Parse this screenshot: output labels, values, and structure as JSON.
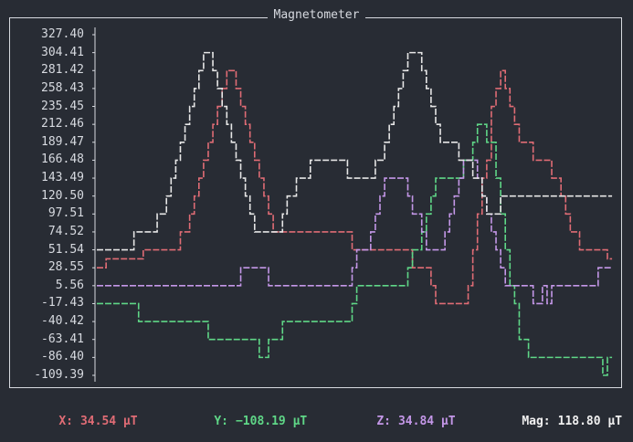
{
  "title": "Magnetometer",
  "colors": {
    "background": "#282c34",
    "frame": "#d7dae0",
    "x": "#e06c75",
    "y": "#5fd787",
    "z": "#c497e8",
    "mag": "#e6e6e6"
  },
  "chart_data": {
    "type": "line",
    "title": "Magnetometer",
    "xlabel": "",
    "ylabel": "",
    "yticks": [
      "327.40",
      "304.41",
      "281.42",
      "258.43",
      "235.45",
      "212.46",
      "189.47",
      "166.48",
      "143.49",
      "120.50",
      "97.51",
      "74.52",
      "51.54",
      "28.55",
      "5.56",
      "-17.43",
      "-40.42",
      "-63.41",
      "-86.40",
      "-109.39"
    ],
    "ylim": [
      -109.39,
      327.4
    ],
    "xlim": [
      0,
      110
    ],
    "grid": false,
    "legend": "none",
    "series": [
      {
        "name": "X",
        "color": "#e06c75",
        "values": [
          28.55,
          28.55,
          40,
          40,
          40,
          40,
          40,
          40,
          40,
          40,
          51.54,
          51.54,
          51.54,
          51.54,
          51.54,
          51.54,
          51.54,
          51.54,
          74.52,
          74.52,
          97.51,
          120.5,
          143.49,
          166.48,
          189.47,
          212.46,
          235.45,
          258.43,
          281.42,
          281.42,
          258.43,
          235.45,
          212.46,
          189.47,
          166.48,
          143.49,
          120.5,
          97.51,
          74.52,
          74.52,
          74.52,
          74.52,
          74.52,
          74.52,
          74.52,
          74.52,
          74.52,
          74.52,
          74.52,
          74.52,
          74.52,
          74.52,
          74.52,
          74.52,
          74.52,
          51.54,
          51.54,
          51.54,
          51.54,
          51.54,
          51.54,
          51.54,
          51.54,
          51.54,
          51.54,
          51.54,
          51.54,
          51.54,
          28.55,
          28.55,
          28.55,
          28.55,
          5.56,
          -17.43,
          -17.43,
          -17.43,
          -17.43,
          -17.43,
          -17.43,
          -17.43,
          5.56,
          51.54,
          97.51,
          143.49,
          166.48,
          235.45,
          258.43,
          281.42,
          258.43,
          235.45,
          212.46,
          189.47,
          189.47,
          189.47,
          166.48,
          166.48,
          166.48,
          166.48,
          143.49,
          143.49,
          120.5,
          97.51,
          74.52,
          74.52,
          51.54,
          51.54,
          51.54,
          51.54,
          51.54,
          51.54,
          40
        ]
      },
      {
        "name": "Y",
        "color": "#5fd787",
        "values": [
          -17.43,
          -17.43,
          -17.43,
          -17.43,
          -17.43,
          -17.43,
          -17.43,
          -17.43,
          -17.43,
          -40.42,
          -40.42,
          -40.42,
          -40.42,
          -40.42,
          -40.42,
          -40.42,
          -40.42,
          -40.42,
          -40.42,
          -40.42,
          -40.42,
          -40.42,
          -40.42,
          -40.42,
          -63.41,
          -63.41,
          -63.41,
          -63.41,
          -63.41,
          -63.41,
          -63.41,
          -63.41,
          -63.41,
          -63.41,
          -63.41,
          -86.4,
          -86.4,
          -63.41,
          -63.41,
          -63.41,
          -40.42,
          -40.42,
          -40.42,
          -40.42,
          -40.42,
          -40.42,
          -40.42,
          -40.42,
          -40.42,
          -40.42,
          -40.42,
          -40.42,
          -40.42,
          -40.42,
          -40.42,
          -17.43,
          5.56,
          5.56,
          5.56,
          5.56,
          5.56,
          5.56,
          5.56,
          5.56,
          5.56,
          5.56,
          5.56,
          28.55,
          51.54,
          51.54,
          74.52,
          97.51,
          120.5,
          143.49,
          143.49,
          143.49,
          143.49,
          143.49,
          143.49,
          166.48,
          166.48,
          189.47,
          212.46,
          212.46,
          189.47,
          189.47,
          143.49,
          97.51,
          51.54,
          5.56,
          -17.43,
          -63.41,
          -63.41,
          -86.4,
          -86.4,
          -86.4,
          -86.4,
          -86.4,
          -86.4,
          -86.4,
          -86.4,
          -86.4,
          -86.4,
          -86.4,
          -86.4,
          -86.4,
          -86.4,
          -86.4,
          -86.4,
          -109.39,
          -86.4
        ]
      },
      {
        "name": "Z",
        "color": "#c497e8",
        "values": [
          5.56,
          5.56,
          5.56,
          5.56,
          5.56,
          5.56,
          5.56,
          5.56,
          5.56,
          5.56,
          5.56,
          5.56,
          5.56,
          5.56,
          5.56,
          5.56,
          5.56,
          5.56,
          5.56,
          5.56,
          5.56,
          5.56,
          5.56,
          5.56,
          5.56,
          5.56,
          5.56,
          5.56,
          5.56,
          5.56,
          5.56,
          28.55,
          28.55,
          28.55,
          28.55,
          28.55,
          28.55,
          5.56,
          5.56,
          5.56,
          5.56,
          5.56,
          5.56,
          5.56,
          5.56,
          5.56,
          5.56,
          5.56,
          5.56,
          5.56,
          5.56,
          5.56,
          5.56,
          5.56,
          5.56,
          28.55,
          51.54,
          51.54,
          51.54,
          74.52,
          97.51,
          120.5,
          143.49,
          143.49,
          143.49,
          143.49,
          143.49,
          120.5,
          97.51,
          97.51,
          74.52,
          51.54,
          51.54,
          51.54,
          51.54,
          74.52,
          97.51,
          120.5,
          143.49,
          166.48,
          166.48,
          166.48,
          143.49,
          120.5,
          97.51,
          74.52,
          51.54,
          28.55,
          5.56,
          5.56,
          5.56,
          5.56,
          5.56,
          5.56,
          -17.43,
          -17.43,
          5.56,
          -17.43,
          5.56,
          5.56,
          5.56,
          5.56,
          5.56,
          5.56,
          5.56,
          5.56,
          5.56,
          5.56,
          28.55,
          28.55,
          28.55
        ]
      },
      {
        "name": "Mag",
        "color": "#e6e6e6",
        "values": [
          51.54,
          51.54,
          51.54,
          51.54,
          51.54,
          51.54,
          51.54,
          51.54,
          74.52,
          74.52,
          74.52,
          74.52,
          74.52,
          97.51,
          97.51,
          120.5,
          143.49,
          166.48,
          189.47,
          212.46,
          235.45,
          258.43,
          281.42,
          304.41,
          304.41,
          281.42,
          258.43,
          235.45,
          212.46,
          189.47,
          166.48,
          143.49,
          120.5,
          97.51,
          74.52,
          74.52,
          74.52,
          74.52,
          74.52,
          74.52,
          97.51,
          120.5,
          120.5,
          143.49,
          143.49,
          143.49,
          166.48,
          166.48,
          166.48,
          166.48,
          166.48,
          166.48,
          166.48,
          166.48,
          143.49,
          143.49,
          143.49,
          143.49,
          143.49,
          143.49,
          166.48,
          166.48,
          189.47,
          212.46,
          235.45,
          258.43,
          281.42,
          304.41,
          304.41,
          304.41,
          281.42,
          258.43,
          235.45,
          212.46,
          189.47,
          189.47,
          189.47,
          189.47,
          166.48,
          166.48,
          166.48,
          143.49,
          143.49,
          120.5,
          97.51,
          97.51,
          97.51,
          120.5,
          120.5,
          120.5,
          120.5,
          120.5,
          120.5,
          120.5,
          120.5,
          120.5,
          120.5,
          120.5,
          120.5,
          120.5,
          120.5,
          120.5,
          120.5,
          120.5,
          120.5,
          120.5,
          120.5,
          120.5,
          120.5,
          120.5,
          120.5
        ]
      }
    ]
  },
  "status": {
    "x": {
      "label": "X:",
      "value": "34.54 µT"
    },
    "y": {
      "label": "Y:",
      "value": "−108.19 µT"
    },
    "z": {
      "label": "Z:",
      "value": "34.84 µT"
    },
    "mag": {
      "label": "Mag:",
      "value": "118.80 µT"
    }
  }
}
